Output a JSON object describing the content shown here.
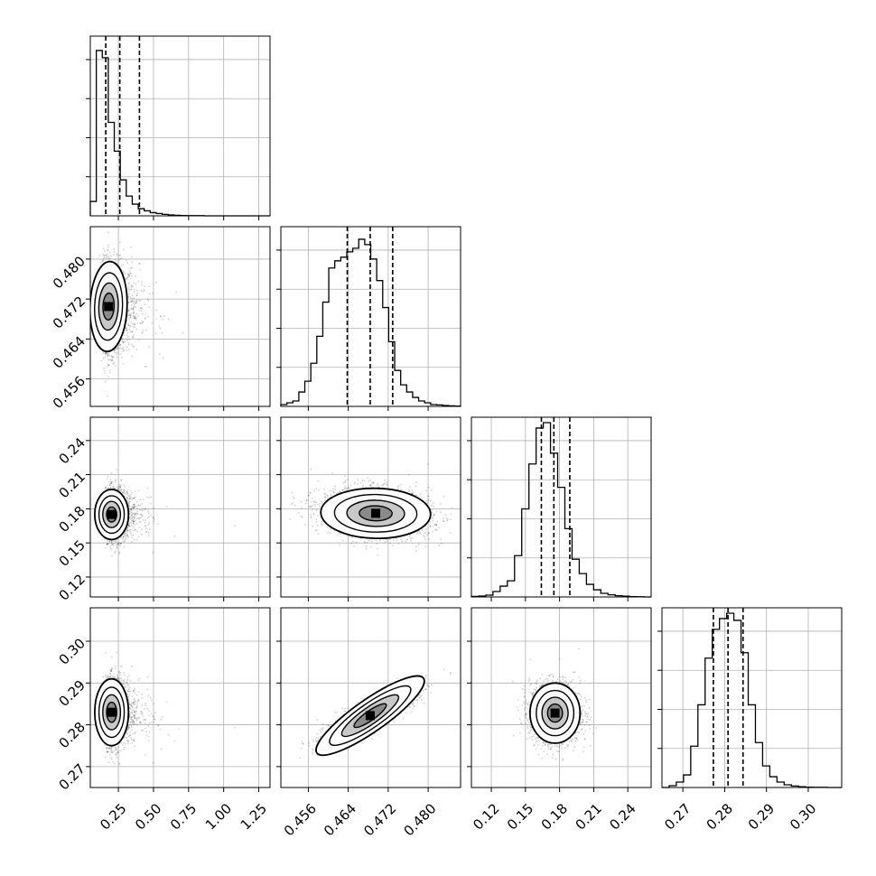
{
  "chart_data": {
    "type": "corner",
    "grid": true,
    "parameters": [
      {
        "range": [
          0.05,
          1.33
        ],
        "ticks": [
          0.25,
          0.5,
          0.75,
          1.0,
          1.25
        ],
        "tick_labels": [
          "0.25",
          "0.50",
          "0.75",
          "1.00",
          "1.25"
        ],
        "quantiles": [
          0.16,
          0.26,
          0.4
        ],
        "hist_values": [
          0.08,
          0.92,
          0.88,
          0.52,
          0.36,
          0.2,
          0.11,
          0.065,
          0.04,
          0.028,
          0.018,
          0.013,
          0.008,
          0.005,
          0.003,
          0.002,
          0.001,
          0.001,
          0.001,
          0.0,
          0.0,
          0.0,
          0.0,
          0.0,
          0.0,
          0.0,
          0.0,
          0.0,
          0.0,
          0.0
        ]
      },
      {
        "range": [
          0.4505,
          0.4865
        ],
        "ticks": [
          0.456,
          0.464,
          0.472,
          0.48
        ],
        "tick_labels": [
          "0.456",
          "0.464",
          "0.472",
          "0.480"
        ],
        "quantiles": [
          0.4638,
          0.4684,
          0.4729
        ],
        "hist_values": [
          0.01,
          0.02,
          0.03,
          0.08,
          0.14,
          0.24,
          0.39,
          0.58,
          0.77,
          0.81,
          0.83,
          0.86,
          0.88,
          0.93,
          0.9,
          0.82,
          0.7,
          0.55,
          0.36,
          0.2,
          0.12,
          0.08,
          0.05,
          0.03,
          0.02,
          0.01,
          0.008,
          0.005,
          0.003,
          0.002
        ]
      },
      {
        "range": [
          0.1025,
          0.2605
        ],
        "ticks": [
          0.12,
          0.15,
          0.18,
          0.21,
          0.24
        ],
        "tick_labels": [
          "0.12",
          "0.15",
          "0.18",
          "0.21",
          "0.24"
        ],
        "quantiles": [
          0.164,
          0.175,
          0.189
        ],
        "hist_values": [
          0.003,
          0.005,
          0.01,
          0.03,
          0.06,
          0.09,
          0.23,
          0.49,
          0.74,
          0.94,
          0.97,
          0.8,
          0.61,
          0.38,
          0.21,
          0.13,
          0.07,
          0.04,
          0.02,
          0.012,
          0.007,
          0.004,
          0.002,
          0.001,
          0.0
        ]
      },
      {
        "range": [
          0.265,
          0.308
        ],
        "ticks": [
          0.27,
          0.28,
          0.29,
          0.3
        ],
        "tick_labels": [
          "0.27",
          "0.28",
          "0.29",
          "0.30"
        ],
        "quantiles": [
          0.2773,
          0.2808,
          0.2844
        ],
        "hist_values": [
          0.0,
          0.01,
          0.03,
          0.07,
          0.23,
          0.46,
          0.72,
          0.88,
          0.94,
          0.97,
          0.93,
          0.75,
          0.46,
          0.25,
          0.12,
          0.06,
          0.03,
          0.015,
          0.008,
          0.004,
          0.002,
          0.001,
          0.001,
          0.0,
          0.0
        ]
      }
    ],
    "pairs": [
      {
        "x": 0,
        "y": 1,
        "center": [
          0.2,
          0.4705
        ],
        "spread": [
          0.11,
          0.0045
        ],
        "rho": -0.05,
        "skew_x": 0.16
      },
      {
        "x": 0,
        "y": 2,
        "center": [
          0.22,
          0.175
        ],
        "spread": [
          0.1,
          0.011
        ],
        "rho": 0.0,
        "skew_x": 0.16
      },
      {
        "x": 1,
        "y": 2,
        "center": [
          0.4695,
          0.176
        ],
        "spread": [
          0.0055,
          0.011
        ],
        "rho": -0.15,
        "skew_x": 0.0
      },
      {
        "x": 0,
        "y": 3,
        "center": [
          0.22,
          0.283
        ],
        "spread": [
          0.1,
          0.004
        ],
        "rho": 0.0,
        "skew_x": 0.16
      },
      {
        "x": 1,
        "y": 3,
        "center": [
          0.4684,
          0.2822
        ],
        "spread": [
          0.0045,
          0.0032
        ],
        "rho": 0.85,
        "skew_x": 0.0
      },
      {
        "x": 2,
        "y": 3,
        "center": [
          0.176,
          0.2828
        ],
        "spread": [
          0.011,
          0.0036
        ],
        "rho": 0.0,
        "skew_x": 0.0
      }
    ]
  }
}
